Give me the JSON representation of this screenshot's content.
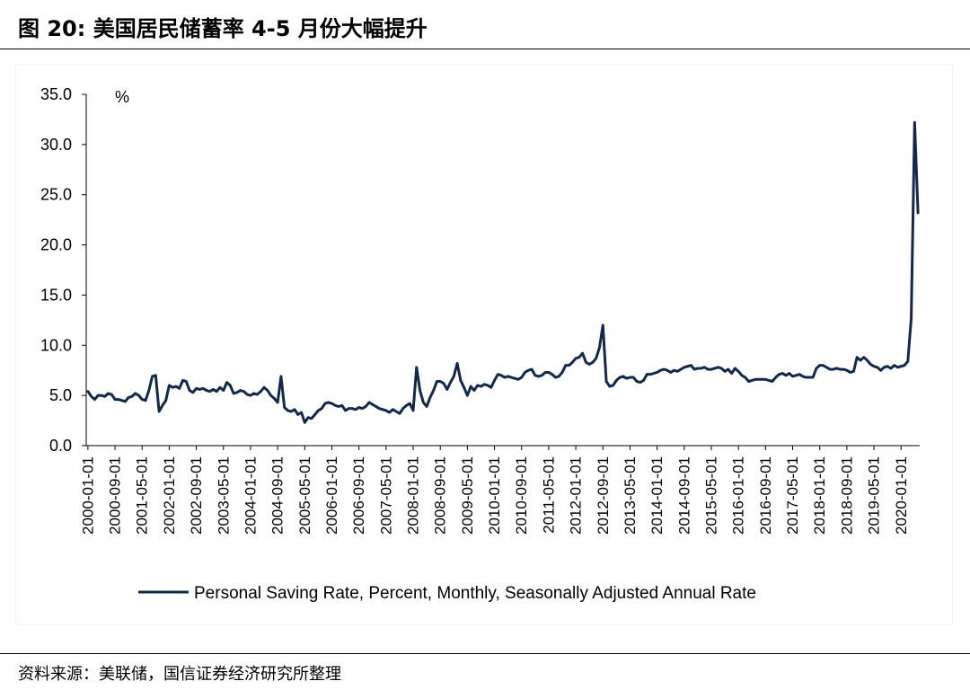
{
  "header": {
    "title": "图 20:  美国居民储蓄率 4-5 月份大幅提升"
  },
  "footer": {
    "source": "资料来源：美联储，国信证券经济研究所整理"
  },
  "colors": {
    "series": "#13294b",
    "axis": "#000000",
    "background": "#ffffff"
  },
  "chart_data": {
    "type": "line",
    "title": "",
    "unit_label": "%",
    "xlabel": "",
    "ylabel": "",
    "ylim": [
      0,
      35
    ],
    "yticks": [
      "0.0",
      "5.0",
      "10.0",
      "15.0",
      "20.0",
      "25.0",
      "30.0",
      "35.0"
    ],
    "ytick_values": [
      0,
      5,
      10,
      15,
      20,
      25,
      30,
      35
    ],
    "xticks": [
      "2000-01-01",
      "2000-09-01",
      "2001-05-01",
      "2002-01-01",
      "2002-09-01",
      "2003-05-01",
      "2004-01-01",
      "2004-09-01",
      "2005-05-01",
      "2006-01-01",
      "2006-09-01",
      "2007-05-01",
      "2008-01-01",
      "2008-09-01",
      "2009-05-01",
      "2010-01-01",
      "2010-09-01",
      "2011-05-01",
      "2012-01-01",
      "2012-09-01",
      "2013-05-01",
      "2014-01-01",
      "2014-09-01",
      "2015-05-01",
      "2016-01-01",
      "2016-09-01",
      "2017-05-01",
      "2018-01-01",
      "2018-09-01",
      "2019-05-01",
      "2020-01-01"
    ],
    "grid": false,
    "legend": "bottom",
    "series": [
      {
        "name": "Personal Saving Rate, Percent, Monthly, Seasonally Adjusted Annual Rate",
        "x_start": "2000-01",
        "frequency": "monthly",
        "values": [
          5.4,
          4.9,
          4.6,
          5.0,
          5.0,
          4.9,
          5.2,
          5.1,
          4.6,
          4.6,
          4.5,
          4.4,
          4.8,
          4.9,
          5.2,
          5.0,
          4.6,
          4.5,
          5.5,
          6.9,
          7.0,
          3.4,
          4.0,
          4.5,
          6.0,
          5.8,
          5.9,
          5.7,
          6.5,
          6.4,
          5.5,
          5.3,
          5.7,
          5.6,
          5.7,
          5.5,
          5.4,
          5.6,
          5.4,
          5.8,
          5.5,
          6.3,
          6.0,
          5.2,
          5.3,
          5.5,
          5.4,
          5.1,
          5.0,
          5.2,
          5.1,
          5.4,
          5.8,
          5.5,
          5.0,
          4.7,
          4.3,
          6.9,
          3.8,
          3.5,
          3.4,
          3.6,
          3.1,
          3.3,
          2.3,
          2.8,
          2.7,
          3.1,
          3.5,
          3.7,
          4.2,
          4.3,
          4.2,
          4.0,
          3.9,
          4.0,
          3.5,
          3.7,
          3.7,
          3.6,
          3.8,
          3.7,
          3.9,
          4.3,
          4.1,
          3.9,
          3.7,
          3.6,
          3.5,
          3.3,
          3.6,
          3.4,
          3.2,
          3.7,
          4.0,
          4.2,
          3.5,
          7.8,
          5.5,
          4.3,
          3.9,
          4.8,
          5.5,
          6.4,
          6.4,
          6.2,
          5.6,
          6.3,
          6.9,
          8.2,
          6.5,
          5.8,
          5.0,
          5.9,
          5.5,
          6.0,
          5.9,
          6.1,
          6.0,
          5.8,
          6.5,
          7.1,
          7.0,
          6.8,
          6.9,
          6.8,
          6.7,
          6.6,
          6.8,
          7.3,
          7.5,
          7.6,
          7.0,
          6.9,
          7.0,
          7.3,
          7.3,
          7.1,
          6.8,
          6.9,
          7.3,
          8.0,
          8.0,
          8.3,
          8.7,
          8.8,
          9.2,
          8.3,
          8.1,
          8.3,
          8.7,
          9.8,
          12.0,
          6.4,
          5.9,
          6.0,
          6.5,
          6.8,
          6.9,
          6.7,
          6.8,
          6.8,
          6.4,
          6.3,
          6.5,
          7.1,
          7.1,
          7.2,
          7.3,
          7.5,
          7.6,
          7.5,
          7.3,
          7.5,
          7.4,
          7.6,
          7.8,
          7.9,
          8.0,
          7.6,
          7.7,
          7.7,
          7.8,
          7.6,
          7.6,
          7.7,
          7.8,
          7.7,
          7.4,
          7.6,
          7.2,
          7.7,
          7.4,
          7.0,
          6.8,
          6.4,
          6.5,
          6.6,
          6.6,
          6.6,
          6.6,
          6.5,
          6.4,
          6.8,
          7.1,
          7.2,
          7.0,
          7.2,
          6.9,
          7.0,
          7.1,
          6.9,
          6.8,
          6.8,
          6.8,
          7.7,
          8.0,
          8.0,
          7.8,
          7.6,
          7.6,
          7.7,
          7.6,
          7.6,
          7.5,
          7.3,
          7.4,
          8.8,
          8.5,
          8.8,
          8.5,
          8.1,
          7.9,
          7.8,
          7.5,
          7.8,
          7.9,
          7.7,
          8.0,
          7.8,
          7.9,
          8.0,
          8.4,
          12.7,
          32.2,
          23.2
        ]
      }
    ]
  }
}
